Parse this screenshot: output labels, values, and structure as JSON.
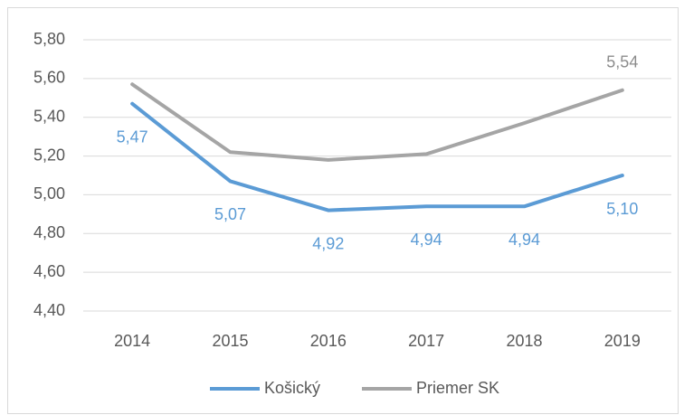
{
  "chart_data": {
    "type": "line",
    "categories": [
      "2014",
      "2015",
      "2016",
      "2017",
      "2018",
      "2019"
    ],
    "series": [
      {
        "name": "Košický",
        "color": "#5b9bd5",
        "values": [
          5.47,
          5.07,
          4.92,
          4.94,
          4.94,
          5.1
        ],
        "value_labels": [
          "5,47",
          "5,07",
          "4,92",
          "4,94",
          "4,94",
          "5,10"
        ]
      },
      {
        "name": "Priemer SK",
        "color": "#a5a5a5",
        "values": [
          5.57,
          5.22,
          5.18,
          5.21,
          5.37,
          5.54
        ],
        "value_labels": [
          null,
          null,
          null,
          null,
          null,
          "5,54"
        ]
      }
    ],
    "ylim": [
      4.4,
      5.8
    ],
    "yticks": [
      {
        "value": 4.4,
        "label": "4,40"
      },
      {
        "value": 4.6,
        "label": "4,60"
      },
      {
        "value": 4.8,
        "label": "4,80"
      },
      {
        "value": 5.0,
        "label": "5,00"
      },
      {
        "value": 5.2,
        "label": "5,20"
      },
      {
        "value": 5.4,
        "label": "5,40"
      },
      {
        "value": 5.6,
        "label": "5,60"
      },
      {
        "value": 5.8,
        "label": "5,80"
      }
    ],
    "grid": true,
    "legend": "bottom"
  }
}
